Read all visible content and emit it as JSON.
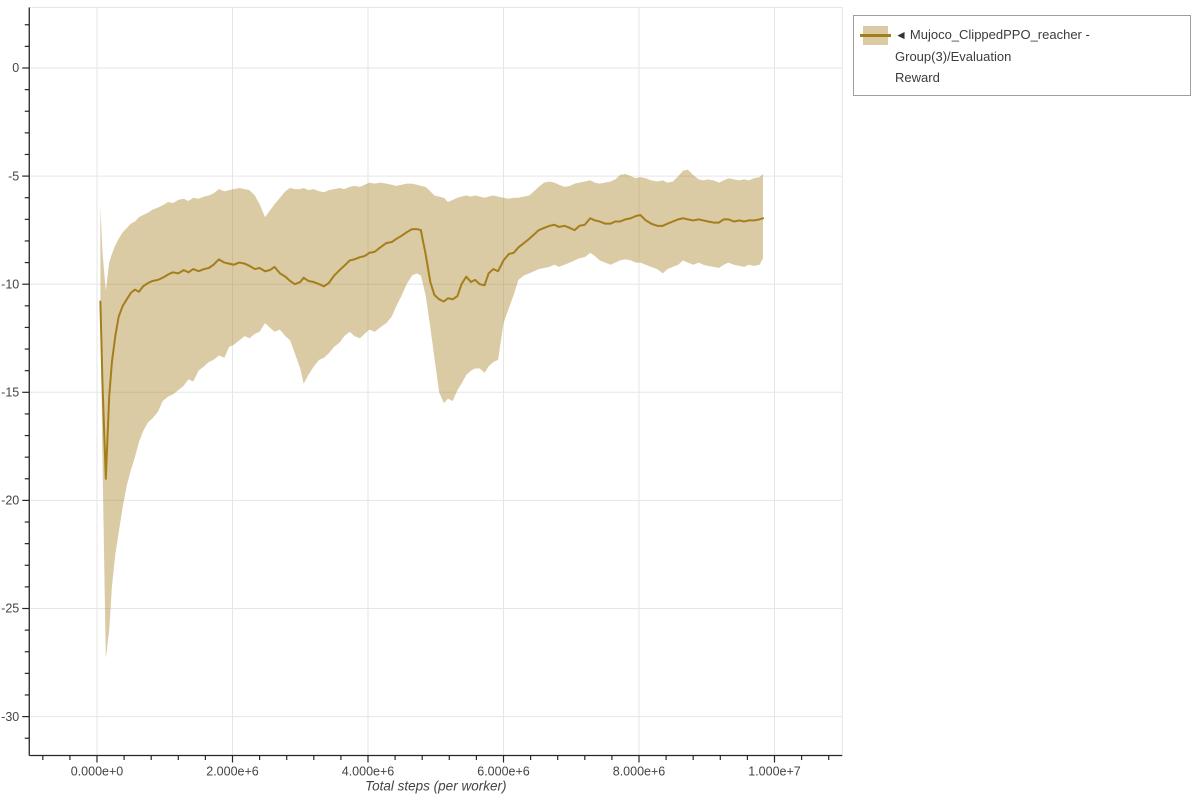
{
  "legend": {
    "arrow": "◄",
    "label_line1": "Mujoco_ClippedPPO_reacher - Group(3)/Evaluation",
    "label_line2": "Reward",
    "full_label": "Mujoco_ClippedPPO_reacher - Group(3)/Evaluation Reward"
  },
  "chart_data": {
    "type": "line",
    "title": "",
    "xlabel": "Total steps (per worker)",
    "ylabel": "",
    "x_unit": "steps",
    "x_scale": 1000000,
    "xlim": [
      -1.0,
      11.0
    ],
    "ylim": [
      -31.8,
      2.8
    ],
    "grid": true,
    "legend_position": "top-right",
    "x_major_ticks": [
      {
        "v": 0,
        "label": "0.000e+0"
      },
      {
        "v": 2,
        "label": "2.000e+6"
      },
      {
        "v": 4,
        "label": "4.000e+6"
      },
      {
        "v": 6,
        "label": "6.000e+6"
      },
      {
        "v": 8,
        "label": "8.000e+6"
      },
      {
        "v": 10,
        "label": "1.000e+7"
      }
    ],
    "x_minor_step": 0.4,
    "y_major_ticks": [
      {
        "v": 0,
        "label": "0"
      },
      {
        "v": -5,
        "label": "-5"
      },
      {
        "v": -10,
        "label": "-10"
      },
      {
        "v": -15,
        "label": "-15"
      },
      {
        "v": -20,
        "label": "-20"
      },
      {
        "v": -25,
        "label": "-25"
      },
      {
        "v": -30,
        "label": "-30"
      }
    ],
    "y_minor_step": 1,
    "series": [
      {
        "name": "Mujoco_ClippedPPO_reacher - Group(3)/Evaluation Reward",
        "line_color": "#a57e1c",
        "band_color": "rgba(166,126,28,0.40)",
        "x": [
          0.05,
          0.08,
          0.13,
          0.18,
          0.22,
          0.27,
          0.32,
          0.38,
          0.44,
          0.5,
          0.56,
          0.62,
          0.68,
          0.75,
          0.82,
          0.9,
          0.97,
          1.05,
          1.12,
          1.2,
          1.28,
          1.35,
          1.42,
          1.5,
          1.58,
          1.65,
          1.72,
          1.8,
          1.88,
          1.95,
          2.02,
          2.1,
          2.18,
          2.25,
          2.33,
          2.4,
          2.48,
          2.55,
          2.62,
          2.7,
          2.78,
          2.85,
          2.92,
          3.0,
          3.05,
          3.12,
          3.2,
          3.28,
          3.35,
          3.42,
          3.5,
          3.58,
          3.65,
          3.73,
          3.8,
          3.88,
          3.95,
          4.02,
          4.1,
          4.18,
          4.27,
          4.35,
          4.42,
          4.5,
          4.57,
          4.65,
          4.72,
          4.78,
          4.85,
          4.92,
          4.98,
          5.05,
          5.12,
          5.18,
          5.25,
          5.32,
          5.38,
          5.45,
          5.52,
          5.58,
          5.65,
          5.72,
          5.78,
          5.85,
          5.92,
          6.0,
          6.08,
          6.15,
          6.22,
          6.3,
          6.38,
          6.45,
          6.52,
          6.6,
          6.68,
          6.75,
          6.82,
          6.9,
          6.98,
          7.05,
          7.12,
          7.2,
          7.28,
          7.35,
          7.42,
          7.5,
          7.58,
          7.65,
          7.72,
          7.8,
          7.88,
          7.95,
          8.02,
          8.1,
          8.18,
          8.27,
          8.35,
          8.42,
          8.5,
          8.58,
          8.65,
          8.72,
          8.8,
          8.88,
          8.95,
          9.02,
          9.1,
          9.18,
          9.25,
          9.32,
          9.4,
          9.48,
          9.55,
          9.62,
          9.7,
          9.78,
          9.83
        ],
        "mean": [
          -10.8,
          -14.5,
          -19.0,
          -15.2,
          -13.6,
          -12.4,
          -11.5,
          -11.0,
          -10.7,
          -10.4,
          -10.25,
          -10.35,
          -10.1,
          -9.95,
          -9.85,
          -9.8,
          -9.7,
          -9.55,
          -9.45,
          -9.5,
          -9.35,
          -9.45,
          -9.3,
          -9.4,
          -9.3,
          -9.25,
          -9.1,
          -8.85,
          -9.0,
          -9.05,
          -9.1,
          -9.0,
          -9.05,
          -9.15,
          -9.3,
          -9.25,
          -9.4,
          -9.35,
          -9.2,
          -9.5,
          -9.65,
          -9.85,
          -10.0,
          -9.9,
          -9.7,
          -9.85,
          -9.9,
          -10.0,
          -10.1,
          -9.95,
          -9.6,
          -9.35,
          -9.15,
          -8.9,
          -8.85,
          -8.75,
          -8.7,
          -8.55,
          -8.5,
          -8.3,
          -8.1,
          -8.05,
          -7.9,
          -7.75,
          -7.6,
          -7.45,
          -7.45,
          -7.5,
          -8.6,
          -9.9,
          -10.5,
          -10.7,
          -10.8,
          -10.65,
          -10.7,
          -10.55,
          -10.0,
          -9.65,
          -9.9,
          -9.8,
          -10.0,
          -10.05,
          -9.5,
          -9.3,
          -9.4,
          -8.9,
          -8.6,
          -8.55,
          -8.3,
          -8.1,
          -7.9,
          -7.7,
          -7.5,
          -7.4,
          -7.3,
          -7.25,
          -7.35,
          -7.3,
          -7.4,
          -7.5,
          -7.3,
          -7.25,
          -6.95,
          -7.05,
          -7.1,
          -7.2,
          -7.2,
          -7.1,
          -7.1,
          -7.0,
          -6.95,
          -6.85,
          -6.8,
          -7.05,
          -7.2,
          -7.3,
          -7.3,
          -7.2,
          -7.1,
          -7.0,
          -6.95,
          -7.0,
          -7.05,
          -7.0,
          -7.05,
          -7.1,
          -7.15,
          -7.15,
          -7.0,
          -7.0,
          -7.1,
          -7.05,
          -7.1,
          -7.05,
          -7.05,
          -7.0,
          -6.95
        ],
        "band_upper": [
          -6.4,
          -8.5,
          -10.3,
          -9.0,
          -8.6,
          -8.2,
          -7.9,
          -7.6,
          -7.4,
          -7.2,
          -7.1,
          -6.9,
          -6.8,
          -6.7,
          -6.55,
          -6.45,
          -6.35,
          -6.2,
          -6.25,
          -6.1,
          -6.05,
          -6.15,
          -6.0,
          -6.05,
          -5.95,
          -5.9,
          -5.8,
          -5.6,
          -5.7,
          -5.65,
          -5.6,
          -5.55,
          -5.6,
          -5.65,
          -5.9,
          -6.3,
          -6.9,
          -6.6,
          -6.3,
          -6.0,
          -5.7,
          -5.55,
          -5.6,
          -5.6,
          -5.55,
          -5.65,
          -5.6,
          -5.7,
          -5.75,
          -5.65,
          -5.6,
          -5.55,
          -5.6,
          -5.5,
          -5.45,
          -5.5,
          -5.4,
          -5.3,
          -5.35,
          -5.3,
          -5.35,
          -5.4,
          -5.45,
          -5.4,
          -5.35,
          -5.35,
          -5.4,
          -5.45,
          -5.5,
          -5.7,
          -5.9,
          -5.95,
          -6.0,
          -6.2,
          -6.1,
          -6.0,
          -5.95,
          -5.9,
          -5.95,
          -5.9,
          -5.95,
          -6.0,
          -5.95,
          -5.9,
          -5.95,
          -6.0,
          -6.05,
          -6.0,
          -6.0,
          -5.95,
          -5.9,
          -5.7,
          -5.5,
          -5.3,
          -5.25,
          -5.3,
          -5.4,
          -5.5,
          -5.45,
          -5.35,
          -5.3,
          -5.25,
          -5.2,
          -5.3,
          -5.35,
          -5.3,
          -5.25,
          -5.15,
          -4.95,
          -4.9,
          -5.0,
          -5.1,
          -5.05,
          -5.1,
          -5.2,
          -5.25,
          -5.2,
          -5.3,
          -5.25,
          -5.0,
          -4.75,
          -4.7,
          -4.95,
          -5.15,
          -5.2,
          -5.15,
          -5.2,
          -5.3,
          -5.2,
          -5.1,
          -5.15,
          -5.2,
          -5.15,
          -5.2,
          -5.1,
          -5.05,
          -4.9
        ],
        "band_lower": [
          -11.2,
          -18.0,
          -27.3,
          -26.0,
          -24.0,
          -22.5,
          -21.5,
          -20.3,
          -19.3,
          -18.6,
          -18.0,
          -17.3,
          -16.8,
          -16.4,
          -16.2,
          -15.9,
          -15.4,
          -15.2,
          -15.1,
          -14.9,
          -14.7,
          -14.4,
          -14.5,
          -14.0,
          -13.8,
          -13.6,
          -13.5,
          -13.3,
          -13.4,
          -12.9,
          -12.8,
          -12.6,
          -12.4,
          -12.5,
          -12.3,
          -12.2,
          -11.8,
          -12.0,
          -12.2,
          -12.1,
          -12.4,
          -12.6,
          -13.2,
          -13.9,
          -14.6,
          -14.2,
          -13.8,
          -13.5,
          -13.4,
          -13.2,
          -12.9,
          -12.7,
          -12.4,
          -12.2,
          -12.4,
          -12.5,
          -12.3,
          -12.1,
          -12.2,
          -12.0,
          -11.8,
          -11.5,
          -11.0,
          -10.5,
          -10.0,
          -9.6,
          -9.5,
          -9.6,
          -10.5,
          -12.0,
          -13.4,
          -15.0,
          -15.5,
          -15.3,
          -15.4,
          -14.9,
          -14.6,
          -14.2,
          -14.0,
          -13.9,
          -13.9,
          -14.1,
          -13.8,
          -13.6,
          -13.5,
          -11.8,
          -11.1,
          -10.5,
          -9.8,
          -9.6,
          -9.5,
          -9.4,
          -9.3,
          -9.25,
          -9.2,
          -9.1,
          -9.2,
          -9.1,
          -9.0,
          -8.9,
          -8.8,
          -8.75,
          -8.55,
          -8.7,
          -8.9,
          -9.0,
          -9.1,
          -9.0,
          -8.9,
          -8.85,
          -8.9,
          -9.0,
          -9.0,
          -9.1,
          -9.2,
          -9.3,
          -9.5,
          -9.3,
          -9.2,
          -9.1,
          -8.9,
          -9.0,
          -9.1,
          -9.0,
          -9.1,
          -9.15,
          -9.2,
          -9.25,
          -9.1,
          -9.0,
          -9.1,
          -9.15,
          -9.2,
          -9.1,
          -9.15,
          -9.1,
          -8.8
        ]
      }
    ]
  }
}
